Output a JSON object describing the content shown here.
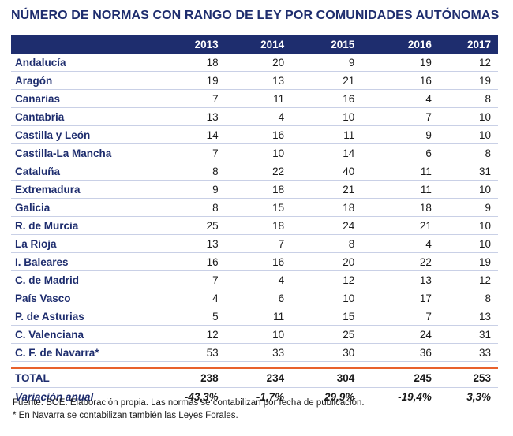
{
  "title": "NÚMERO DE NORMAS CON RANGO DE LEY POR COMUNIDADES AUTÓNOMAS",
  "columns": [
    "2013",
    "2014",
    "2015",
    "2016",
    "2017"
  ],
  "rows": [
    {
      "region": "Andalucía",
      "values": [
        "18",
        "20",
        "9",
        "19",
        "12"
      ]
    },
    {
      "region": "Aragón",
      "values": [
        "19",
        "13",
        "21",
        "16",
        "19"
      ]
    },
    {
      "region": "Canarias",
      "values": [
        "7",
        "11",
        "16",
        "4",
        "8"
      ]
    },
    {
      "region": "Cantabria",
      "values": [
        "13",
        "4",
        "10",
        "7",
        "10"
      ]
    },
    {
      "region": "Castilla y León",
      "values": [
        "14",
        "16",
        "11",
        "9",
        "10"
      ]
    },
    {
      "region": "Castilla-La Mancha",
      "values": [
        "7",
        "10",
        "14",
        "6",
        "8"
      ]
    },
    {
      "region": "Cataluña",
      "values": [
        "8",
        "22",
        "40",
        "11",
        "31"
      ]
    },
    {
      "region": "Extremadura",
      "values": [
        "9",
        "18",
        "21",
        "11",
        "10"
      ]
    },
    {
      "region": "Galicia",
      "values": [
        "8",
        "15",
        "18",
        "18",
        "9"
      ]
    },
    {
      "region": "R. de Murcia",
      "values": [
        "25",
        "18",
        "24",
        "21",
        "10"
      ]
    },
    {
      "region": "La Rioja",
      "values": [
        "13",
        "7",
        "8",
        "4",
        "10"
      ]
    },
    {
      "region": "I. Baleares",
      "values": [
        "16",
        "16",
        "20",
        "22",
        "19"
      ]
    },
    {
      "region": "C. de Madrid",
      "values": [
        "7",
        "4",
        "12",
        "13",
        "12"
      ]
    },
    {
      "region": "País Vasco",
      "values": [
        "4",
        "6",
        "10",
        "17",
        "8"
      ]
    },
    {
      "region": "P. de Asturias",
      "values": [
        "5",
        "11",
        "15",
        "7",
        "13"
      ]
    },
    {
      "region": "C. Valenciana",
      "values": [
        "12",
        "10",
        "25",
        "24",
        "31"
      ]
    },
    {
      "region": "C. F. de Navarra*",
      "values": [
        "53",
        "33",
        "30",
        "36",
        "33"
      ]
    }
  ],
  "total": {
    "label": "TOTAL",
    "values": [
      "238",
      "234",
      "304",
      "245",
      "253"
    ]
  },
  "variation": {
    "label": "Variación anual",
    "values": [
      "-43,3%",
      "-1,7%",
      "29,9%",
      "-19,4%",
      "3,3%"
    ]
  },
  "footnotes": [
    "Fuente: BOE. Elaboración propia. Las normas se contabilizan por fecha de publicación.",
    "* En Navarra se contabilizan también las Leyes Forales."
  ],
  "colors": {
    "header": "#1e2d6e",
    "accent_line": "#e8612c"
  }
}
